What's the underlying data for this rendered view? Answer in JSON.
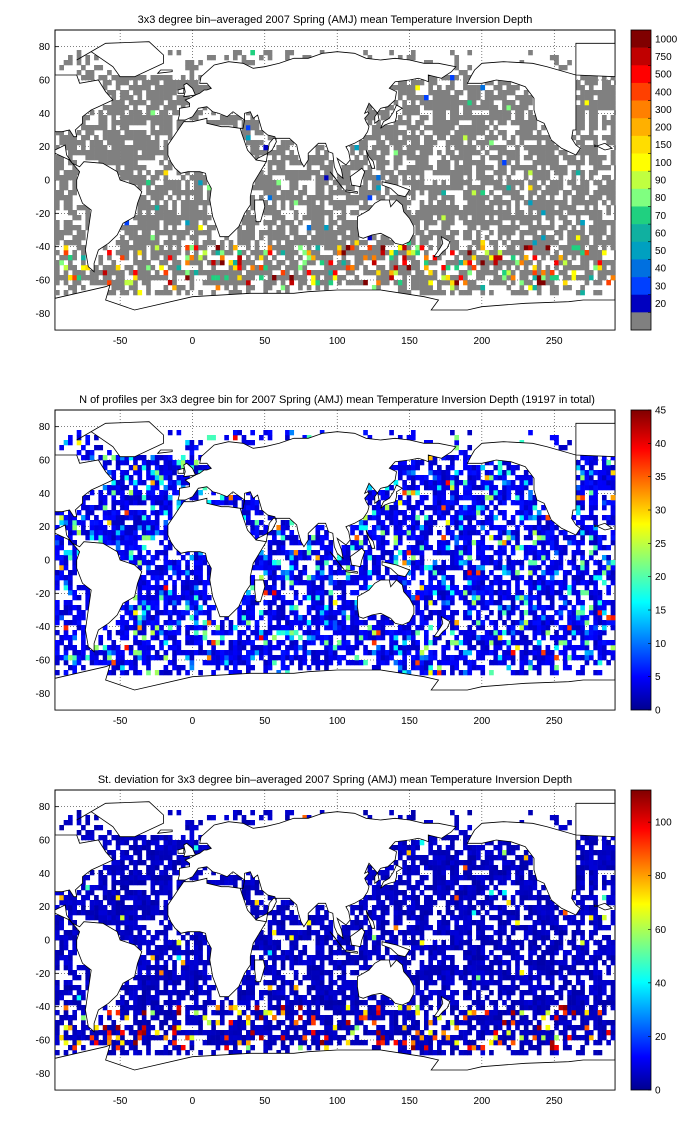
{
  "figure": {
    "panels": [
      {
        "id": "mean-depth",
        "title": "3x3 degree bin–averaged 2007 Spring (AMJ) mean Temperature Inversion Depth",
        "x_ticks": [
          "-50",
          "0",
          "50",
          "100",
          "150",
          "200",
          "250"
        ],
        "y_ticks": [
          "80",
          "60",
          "40",
          "20",
          "0",
          "-20",
          "-40",
          "-60",
          "-80"
        ],
        "colorbar": {
          "type": "discrete",
          "labels": [
            "1000",
            "750",
            "500",
            "400",
            "300",
            "200",
            "150",
            "100",
            "90",
            "80",
            "70",
            "60",
            "50",
            "40",
            "30",
            "20"
          ],
          "colors": [
            "#800000",
            "#c00000",
            "#ff0000",
            "#ff4000",
            "#ff8000",
            "#ffb000",
            "#ffdd00",
            "#ffff00",
            "#c0ff40",
            "#80ff80",
            "#20d080",
            "#10b0a0",
            "#00a0c0",
            "#0070e0",
            "#0040ff",
            "#0000c0",
            "#808080"
          ]
        }
      },
      {
        "id": "profile-count",
        "title": "N of profiles per 3x3 degree bin for 2007 Spring (AMJ) mean Temperature Inversion Depth  (19197 in total)",
        "x_ticks": [
          "-50",
          "0",
          "50",
          "100",
          "150",
          "200",
          "250"
        ],
        "y_ticks": [
          "80",
          "60",
          "40",
          "20",
          "0",
          "-20",
          "-40",
          "-60",
          "-80"
        ],
        "colorbar": {
          "type": "continuous",
          "labels": [
            "45",
            "40",
            "35",
            "30",
            "25",
            "20",
            "15",
            "10",
            "5",
            "0"
          ],
          "range": [
            0,
            45
          ]
        }
      },
      {
        "id": "std-dev",
        "title": "St. deviation for 3x3 degree bin–averaged 2007 Spring (AMJ) mean Temperature Inversion Depth",
        "x_ticks": [
          "-50",
          "0",
          "50",
          "100",
          "150",
          "200",
          "250"
        ],
        "y_ticks": [
          "80",
          "60",
          "40",
          "20",
          "0",
          "-20",
          "-40",
          "-60",
          "-80"
        ],
        "colorbar": {
          "type": "continuous",
          "labels": [
            "100",
            "80",
            "60",
            "40",
            "20",
            "0"
          ],
          "range": [
            0,
            112
          ]
        }
      }
    ]
  }
}
